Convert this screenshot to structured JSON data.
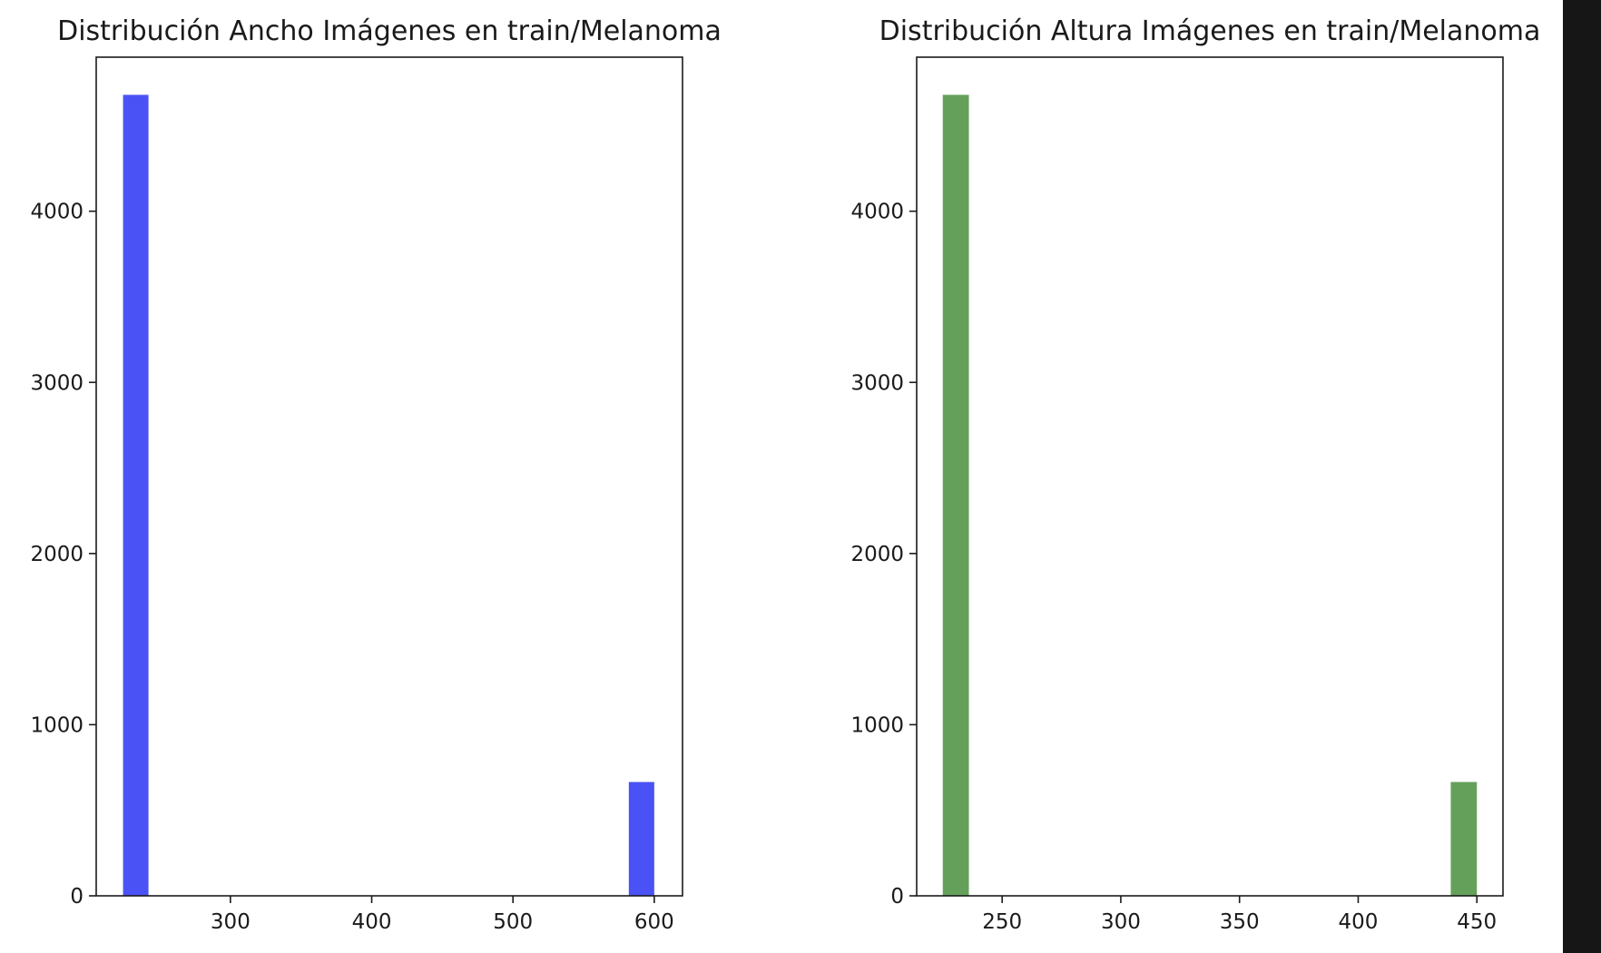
{
  "chart_data": [
    {
      "type": "bar",
      "title": "Distribución Ancho Imágenes en train/Melanoma",
      "xlabel": "",
      "ylabel": "",
      "color": "#4b52f5",
      "xlim": [
        205,
        620
      ],
      "ylim": [
        0,
        4900
      ],
      "xticks": [
        300,
        400,
        500,
        600
      ],
      "yticks": [
        0,
        1000,
        2000,
        3000,
        4000
      ],
      "bins": [
        {
          "x0": 224,
          "x1": 242,
          "value": 4680
        },
        {
          "x0": 582,
          "x1": 600,
          "value": 665
        }
      ],
      "grid": false
    },
    {
      "type": "bar",
      "title": "Distribución Altura Imágenes en train/Melanoma",
      "xlabel": "",
      "ylabel": "",
      "color": "#64a05a",
      "xlim": [
        214,
        461
      ],
      "ylim": [
        0,
        4900
      ],
      "xticks": [
        250,
        300,
        350,
        400,
        450
      ],
      "yticks": [
        0,
        1000,
        2000,
        3000,
        4000
      ],
      "bins": [
        {
          "x0": 225,
          "x1": 236,
          "value": 4680
        },
        {
          "x0": 439,
          "x1": 450,
          "value": 665
        }
      ],
      "grid": false
    }
  ]
}
